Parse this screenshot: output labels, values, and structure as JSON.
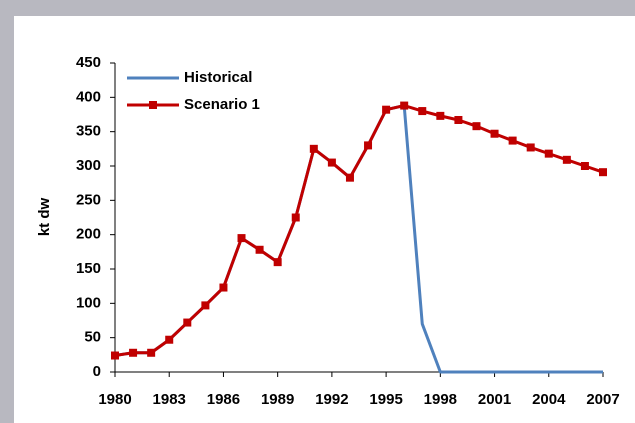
{
  "chart_data": {
    "type": "line",
    "y_label": "kt dw",
    "x": [
      1980,
      1981,
      1982,
      1983,
      1984,
      1985,
      1986,
      1987,
      1988,
      1989,
      1990,
      1991,
      1992,
      1993,
      1994,
      1995,
      1996,
      1997,
      1998,
      1999,
      2000,
      2001,
      2002,
      2003,
      2004,
      2005,
      2006,
      2007
    ],
    "series": [
      {
        "name": "Historical",
        "color": "#4f81bd",
        "marker": false,
        "values": [
          24,
          28,
          28,
          47,
          72,
          97,
          123,
          195,
          178,
          160,
          225,
          325,
          305,
          283,
          330,
          382,
          388,
          70,
          0,
          0,
          0,
          0,
          0,
          0,
          0,
          0,
          0,
          0
        ]
      },
      {
        "name": "Scenario 1",
        "color": "#c00000",
        "marker": true,
        "values": [
          24,
          28,
          28,
          47,
          72,
          97,
          123,
          195,
          178,
          160,
          225,
          325,
          305,
          283,
          330,
          382,
          388,
          380,
          373,
          367,
          358,
          347,
          337,
          327,
          318,
          309,
          300,
          291
        ]
      }
    ],
    "xlim": [
      1980,
      2007
    ],
    "xticks": [
      1980,
      1983,
      1986,
      1989,
      1992,
      1995,
      1998,
      2001,
      2004,
      2007
    ],
    "ylim": [
      0,
      450
    ],
    "yticks": [
      0,
      50,
      100,
      150,
      200,
      250,
      300,
      350,
      400,
      450
    ],
    "legend": "upper-left",
    "grid": false
  }
}
